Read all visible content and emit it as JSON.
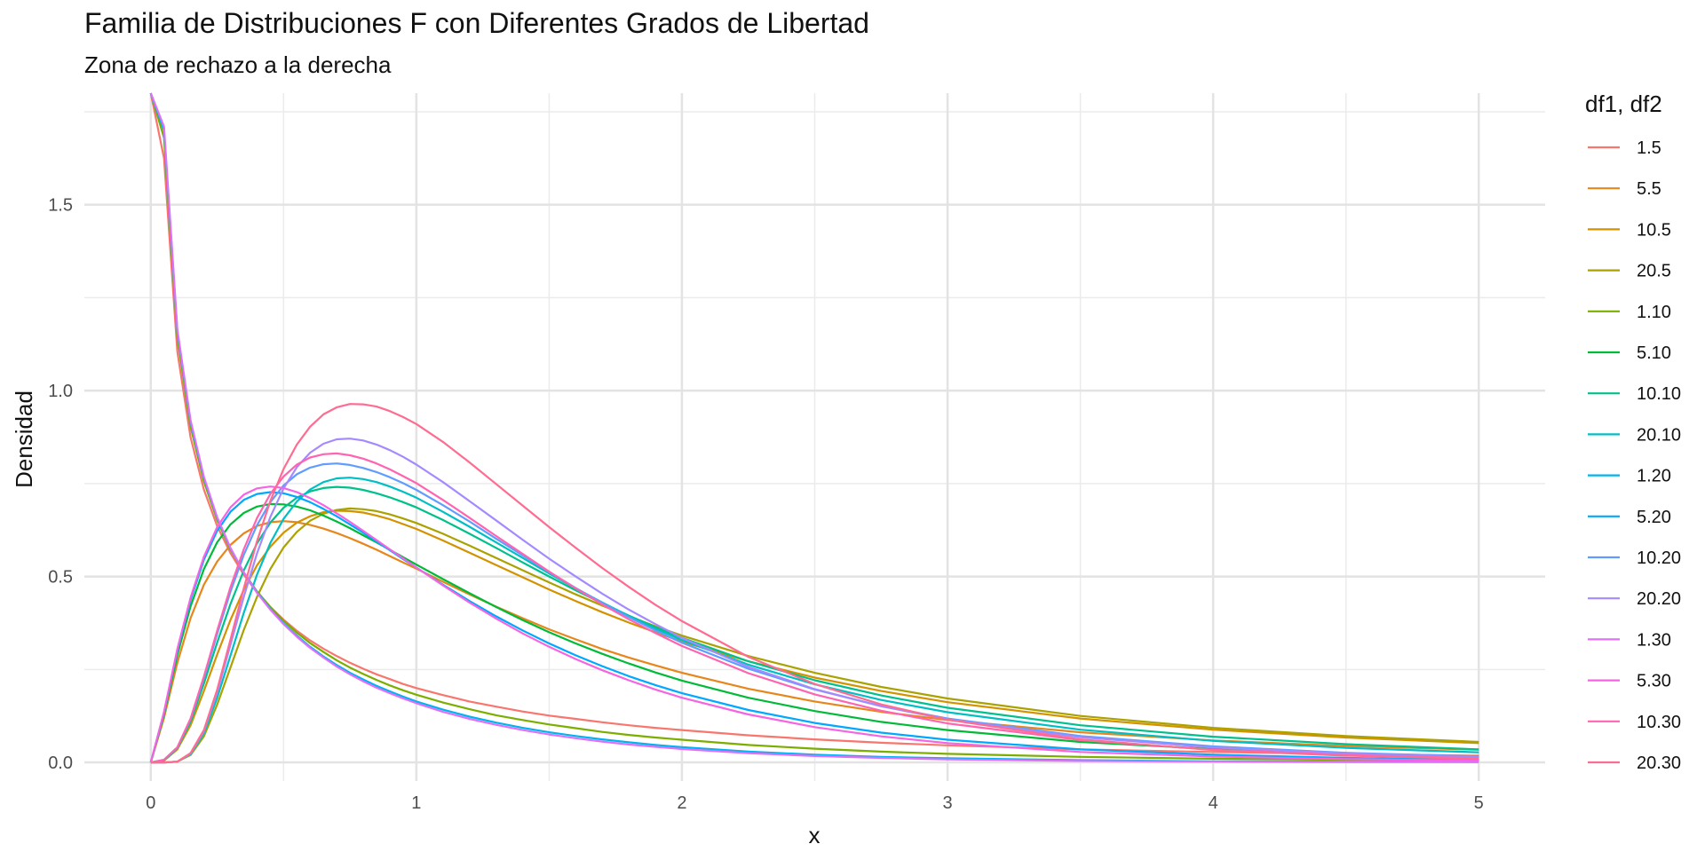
{
  "chart_data": {
    "type": "line",
    "title": "Familia de Distribuciones F con Diferentes Grados de Libertad",
    "subtitle": "Zona de rechazo a la derecha",
    "xlabel": "x",
    "ylabel": "Densidad",
    "xlim": [
      -0.25,
      5.25
    ],
    "ylim": [
      -0.05,
      1.8
    ],
    "x_ticks": [
      "0",
      "1",
      "2",
      "3",
      "4",
      "5"
    ],
    "y_ticks": [
      "0.0",
      "0.5",
      "1.0",
      "1.5"
    ],
    "grid": true,
    "legend_title": "df1, df2",
    "legend_position": "right",
    "x": [
      0,
      0.05,
      0.1,
      0.15,
      0.2,
      0.25,
      0.3,
      0.35,
      0.4,
      0.45,
      0.5,
      0.55,
      0.6,
      0.65,
      0.7,
      0.75,
      0.8,
      0.85,
      0.9,
      0.95,
      1.0,
      1.1,
      1.2,
      1.3,
      1.4,
      1.5,
      1.6,
      1.7,
      1.8,
      1.9,
      2.0,
      2.25,
      2.5,
      2.75,
      3.0,
      3.5,
      4.0,
      4.5,
      5.0
    ],
    "series": [
      {
        "name": "1.5",
        "color": "#F8766D",
        "values": [
          1.8,
          1.625,
          1.105,
          0.874,
          0.734,
          0.636,
          0.563,
          0.505,
          0.457,
          0.418,
          0.384,
          0.354,
          0.328,
          0.306,
          0.286,
          0.268,
          0.252,
          0.237,
          0.224,
          0.211,
          0.2,
          0.181,
          0.164,
          0.15,
          0.137,
          0.126,
          0.117,
          0.108,
          0.1,
          0.093,
          0.087,
          0.073,
          0.062,
          0.053,
          0.046,
          0.035,
          0.028,
          0.023,
          0.018
        ]
      },
      {
        "name": "5.5",
        "color": "#E7861B",
        "values": [
          0,
          0.12,
          0.268,
          0.388,
          0.478,
          0.54,
          0.585,
          0.616,
          0.636,
          0.646,
          0.649,
          0.646,
          0.639,
          0.629,
          0.617,
          0.603,
          0.588,
          0.572,
          0.555,
          0.538,
          0.521,
          0.486,
          0.452,
          0.419,
          0.388,
          0.358,
          0.331,
          0.305,
          0.282,
          0.261,
          0.241,
          0.198,
          0.164,
          0.136,
          0.114,
          0.081,
          0.059,
          0.044,
          0.034
        ]
      },
      {
        "name": "10.5",
        "color": "#D39200",
        "values": [
          0,
          0.005,
          0.035,
          0.1,
          0.192,
          0.29,
          0.383,
          0.464,
          0.53,
          0.58,
          0.618,
          0.645,
          0.662,
          0.673,
          0.677,
          0.676,
          0.672,
          0.664,
          0.654,
          0.641,
          0.628,
          0.597,
          0.564,
          0.531,
          0.498,
          0.465,
          0.434,
          0.404,
          0.376,
          0.35,
          0.325,
          0.272,
          0.228,
          0.192,
          0.162,
          0.118,
          0.088,
          0.067,
          0.052
        ]
      },
      {
        "name": "20.5",
        "color": "#AAA200",
        "values": [
          0,
          0.0,
          0.002,
          0.02,
          0.07,
          0.155,
          0.255,
          0.356,
          0.445,
          0.52,
          0.578,
          0.62,
          0.65,
          0.669,
          0.679,
          0.683,
          0.681,
          0.676,
          0.667,
          0.656,
          0.644,
          0.615,
          0.583,
          0.55,
          0.517,
          0.484,
          0.452,
          0.422,
          0.393,
          0.366,
          0.341,
          0.286,
          0.241,
          0.203,
          0.172,
          0.125,
          0.093,
          0.071,
          0.055
        ]
      },
      {
        "name": "1.10",
        "color": "#7CAE00",
        "values": [
          1.8,
          1.68,
          1.145,
          0.903,
          0.756,
          0.652,
          0.573,
          0.511,
          0.46,
          0.418,
          0.381,
          0.349,
          0.321,
          0.297,
          0.275,
          0.255,
          0.238,
          0.222,
          0.207,
          0.194,
          0.182,
          0.161,
          0.143,
          0.127,
          0.114,
          0.102,
          0.092,
          0.082,
          0.074,
          0.067,
          0.061,
          0.047,
          0.037,
          0.029,
          0.023,
          0.015,
          0.01,
          0.007,
          0.005
        ]
      },
      {
        "name": "5.10",
        "color": "#00BA38",
        "values": [
          0,
          0.129,
          0.289,
          0.42,
          0.52,
          0.592,
          0.64,
          0.671,
          0.688,
          0.695,
          0.694,
          0.688,
          0.678,
          0.664,
          0.648,
          0.63,
          0.611,
          0.592,
          0.572,
          0.552,
          0.532,
          0.493,
          0.455,
          0.418,
          0.383,
          0.35,
          0.32,
          0.292,
          0.266,
          0.242,
          0.22,
          0.174,
          0.138,
          0.109,
          0.087,
          0.055,
          0.036,
          0.024,
          0.016
        ]
      },
      {
        "name": "10.10",
        "color": "#00C08B",
        "values": [
          0,
          0.006,
          0.038,
          0.11,
          0.212,
          0.322,
          0.426,
          0.516,
          0.589,
          0.645,
          0.685,
          0.712,
          0.729,
          0.738,
          0.741,
          0.739,
          0.733,
          0.724,
          0.713,
          0.7,
          0.686,
          0.652,
          0.615,
          0.577,
          0.538,
          0.5,
          0.463,
          0.428,
          0.395,
          0.364,
          0.335,
          0.272,
          0.221,
          0.18,
          0.147,
          0.1,
          0.069,
          0.049,
          0.035
        ]
      },
      {
        "name": "20.10",
        "color": "#00BFC4",
        "values": [
          0,
          0.0,
          0.002,
          0.022,
          0.078,
          0.173,
          0.287,
          0.402,
          0.505,
          0.59,
          0.655,
          0.702,
          0.734,
          0.754,
          0.764,
          0.766,
          0.762,
          0.754,
          0.742,
          0.728,
          0.712,
          0.674,
          0.634,
          0.592,
          0.55,
          0.508,
          0.468,
          0.43,
          0.394,
          0.36,
          0.329,
          0.263,
          0.21,
          0.168,
          0.135,
          0.088,
          0.058,
          0.039,
          0.027
        ]
      },
      {
        "name": "1.20",
        "color": "#00B4EF",
        "values": [
          1.8,
          1.7,
          1.16,
          0.915,
          0.765,
          0.658,
          0.576,
          0.511,
          0.458,
          0.413,
          0.374,
          0.341,
          0.311,
          0.285,
          0.262,
          0.241,
          0.223,
          0.206,
          0.191,
          0.177,
          0.164,
          0.142,
          0.123,
          0.107,
          0.093,
          0.081,
          0.071,
          0.062,
          0.054,
          0.047,
          0.041,
          0.029,
          0.021,
          0.015,
          0.011,
          0.006,
          0.003,
          0.002,
          0.001
        ]
      },
      {
        "name": "5.20",
        "color": "#00A9FF",
        "values": [
          0,
          0.134,
          0.3,
          0.437,
          0.545,
          0.623,
          0.674,
          0.706,
          0.722,
          0.727,
          0.724,
          0.714,
          0.7,
          0.682,
          0.662,
          0.64,
          0.618,
          0.594,
          0.571,
          0.547,
          0.524,
          0.478,
          0.434,
          0.393,
          0.355,
          0.32,
          0.288,
          0.259,
          0.232,
          0.208,
          0.186,
          0.141,
          0.106,
          0.08,
          0.061,
          0.035,
          0.021,
          0.012,
          0.007
        ]
      },
      {
        "name": "10.20",
        "color": "#619CFF",
        "values": [
          0,
          0.007,
          0.04,
          0.116,
          0.226,
          0.345,
          0.459,
          0.558,
          0.638,
          0.7,
          0.745,
          0.775,
          0.793,
          0.802,
          0.804,
          0.8,
          0.792,
          0.781,
          0.767,
          0.751,
          0.733,
          0.692,
          0.648,
          0.602,
          0.557,
          0.512,
          0.469,
          0.429,
          0.391,
          0.355,
          0.322,
          0.252,
          0.196,
          0.152,
          0.118,
          0.071,
          0.043,
          0.026,
          0.016
        ]
      },
      {
        "name": "20.20",
        "color": "#A58AFF",
        "values": [
          0,
          0.0,
          0.002,
          0.024,
          0.084,
          0.188,
          0.316,
          0.445,
          0.562,
          0.66,
          0.737,
          0.794,
          0.833,
          0.857,
          0.869,
          0.871,
          0.866,
          0.855,
          0.84,
          0.822,
          0.801,
          0.754,
          0.703,
          0.651,
          0.599,
          0.548,
          0.5,
          0.454,
          0.411,
          0.372,
          0.335,
          0.257,
          0.197,
          0.151,
          0.116,
          0.068,
          0.04,
          0.024,
          0.014
        ]
      },
      {
        "name": "1.30",
        "color": "#DF70F8",
        "values": [
          1.8,
          1.71,
          1.165,
          0.92,
          0.768,
          0.66,
          0.577,
          0.511,
          0.456,
          0.411,
          0.372,
          0.338,
          0.308,
          0.282,
          0.258,
          0.237,
          0.218,
          0.201,
          0.186,
          0.172,
          0.159,
          0.136,
          0.117,
          0.101,
          0.087,
          0.075,
          0.065,
          0.056,
          0.048,
          0.042,
          0.036,
          0.025,
          0.017,
          0.012,
          0.008,
          0.004,
          0.002,
          0.001,
          0.001
        ]
      },
      {
        "name": "5.30",
        "color": "#F564E3",
        "values": [
          0,
          0.136,
          0.305,
          0.443,
          0.553,
          0.633,
          0.686,
          0.72,
          0.737,
          0.742,
          0.738,
          0.727,
          0.711,
          0.692,
          0.67,
          0.647,
          0.623,
          0.598,
          0.573,
          0.549,
          0.524,
          0.476,
          0.43,
          0.387,
          0.347,
          0.311,
          0.278,
          0.248,
          0.221,
          0.196,
          0.174,
          0.129,
          0.095,
          0.07,
          0.052,
          0.028,
          0.016,
          0.009,
          0.005
        ]
      },
      {
        "name": "10.30",
        "color": "#FF64B0",
        "values": [
          0,
          0.007,
          0.041,
          0.118,
          0.231,
          0.354,
          0.471,
          0.573,
          0.657,
          0.722,
          0.769,
          0.801,
          0.82,
          0.829,
          0.831,
          0.826,
          0.817,
          0.804,
          0.788,
          0.77,
          0.751,
          0.706,
          0.658,
          0.609,
          0.561,
          0.513,
          0.468,
          0.425,
          0.385,
          0.348,
          0.313,
          0.24,
          0.183,
          0.139,
          0.105,
          0.06,
          0.034,
          0.02,
          0.011
        ]
      },
      {
        "name": "20.30",
        "color": "#FF6C91",
        "values": [
          0,
          0.0,
          0.002,
          0.025,
          0.087,
          0.195,
          0.33,
          0.468,
          0.595,
          0.703,
          0.789,
          0.855,
          0.903,
          0.936,
          0.955,
          0.964,
          0.963,
          0.957,
          0.945,
          0.929,
          0.91,
          0.862,
          0.807,
          0.749,
          0.691,
          0.633,
          0.577,
          0.523,
          0.472,
          0.424,
          0.38,
          0.284,
          0.211,
          0.156,
          0.115,
          0.062,
          0.033,
          0.018,
          0.01
        ]
      }
    ]
  }
}
